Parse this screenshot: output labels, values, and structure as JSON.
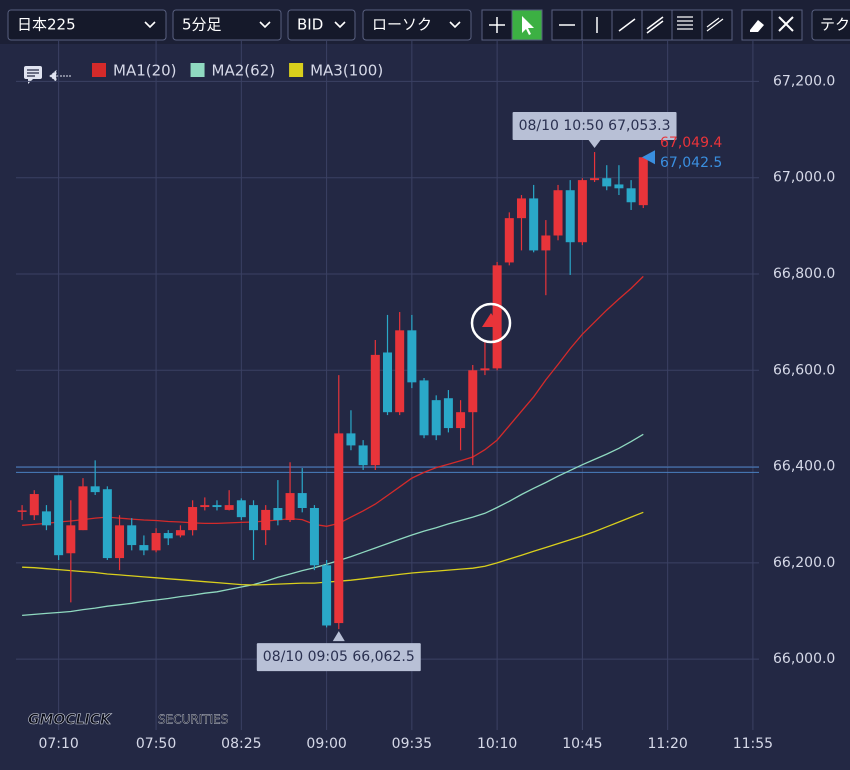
{
  "toolbar": {
    "symbol": "日本225",
    "timeframe": "5分足",
    "price_type": "BID",
    "chart_style": "ローソク",
    "technical": "テク"
  },
  "logo": {
    "brand": "GMOCLICK",
    "suffix": "SECURITIES"
  },
  "chart_data": {
    "type": "candlestick",
    "categories": [
      null,
      null,
      null,
      "07:10",
      null,
      null,
      null,
      null,
      null,
      null,
      null,
      "07:50",
      null,
      null,
      null,
      null,
      null,
      null,
      "08:25",
      null,
      null,
      null,
      null,
      null,
      null,
      "09:00",
      null,
      null,
      null,
      null,
      null,
      null,
      "09:35",
      null,
      null,
      null,
      null,
      null,
      null,
      "10:10",
      null,
      null,
      null,
      null,
      null,
      null,
      "10:45",
      null,
      null,
      null,
      null,
      null,
      null,
      "11:20",
      null,
      null,
      null,
      null,
      null,
      null,
      "11:55"
    ],
    "open": [
      66307,
      66299,
      66307,
      66382,
      66220,
      66268,
      66359,
      66353,
      66210,
      66278,
      66237,
      66226,
      66262,
      66257,
      66268,
      66316,
      66320,
      66310,
      66330,
      66320,
      66268,
      66314,
      66289,
      66345,
      66314,
      66195,
      66075,
      66469,
      66444,
      66403,
      66637,
      66513,
      66683,
      66579,
      66538,
      66542,
      66480,
      66513,
      66600,
      66604,
      66824,
      66916,
      66957,
      66849,
      66880,
      66974,
      66866,
      66995,
      66999,
      66986,
      66978,
      66943,
      null,
      null,
      null,
      null,
      null,
      null,
      null,
      null,
      null
    ],
    "high": [
      66320,
      66351,
      66320,
      66382,
      66330,
      66376,
      66413,
      66359,
      66299,
      66293,
      66257,
      66272,
      66268,
      66278,
      66330,
      66336,
      66330,
      66351,
      66334,
      66330,
      66320,
      66372,
      66409,
      66397,
      66320,
      66206,
      66590,
      66517,
      66455,
      66663,
      66715,
      66721,
      66715,
      66584,
      66548,
      66559,
      66538,
      66611,
      66663,
      66825,
      66928,
      66964,
      66985,
      66912,
      66985,
      66995,
      66999,
      67053.3,
      67026,
      67026,
      66995,
      67042.5,
      null,
      null,
      null,
      null,
      null,
      null,
      null,
      null,
      null
    ],
    "low": [
      66289,
      66289,
      66268,
      66206,
      66118,
      66268,
      66341,
      66206,
      66185,
      66226,
      66216,
      66222,
      66237,
      66253,
      66257,
      66309,
      66309,
      66309,
      66289,
      66206,
      66237,
      66278,
      66285,
      66305,
      66185,
      66066,
      66062.5,
      66434,
      66393,
      66393,
      66507,
      66507,
      66563,
      66459,
      66455,
      66471,
      66434,
      66403,
      66590,
      66600,
      66818,
      66849,
      66845,
      66756,
      66870,
      66798,
      66860,
      66991,
      66974,
      66964,
      66933,
      66937,
      null,
      null,
      null,
      null,
      null,
      null,
      null,
      null,
      null
    ],
    "close": [
      66309,
      66343,
      66278,
      66216,
      66278,
      66359,
      66347,
      66210,
      66278,
      66237,
      66226,
      66262,
      66251,
      66268,
      66316,
      66320,
      66316,
      66320,
      66295,
      66268,
      66310,
      66289,
      66345,
      66314,
      66195,
      66070,
      66469,
      66444,
      66403,
      66632,
      66513,
      66683,
      66575,
      66465,
      66465,
      66480,
      66513,
      66600,
      66604,
      66818,
      66916,
      66957,
      66849,
      66880,
      66974,
      66866,
      66995,
      66999,
      66982,
      66978,
      66949,
      67042.5,
      null,
      null,
      null,
      null,
      null,
      null,
      null,
      null,
      null
    ],
    "up_color": "#e8343a",
    "down_color": "#2aa8c8",
    "series": [
      {
        "name": "MA1(20)",
        "color": "#d42a2a",
        "values": [
          66278,
          66280,
          66282,
          66285,
          66287,
          66290,
          66293,
          66295,
          66293,
          66291,
          66289,
          66288,
          66286,
          66285,
          66283,
          66282,
          66282,
          66283,
          66284,
          66285,
          66287,
          66289,
          66292,
          66290,
          66280,
          66276,
          66282,
          66295,
          66308,
          66322,
          66340,
          66358,
          66376,
          66388,
          66398,
          66405,
          66412,
          66420,
          66435,
          66455,
          66485,
          66515,
          66545,
          66580,
          66612,
          66645,
          66675,
          66700,
          66725,
          66748,
          66770,
          66795,
          null,
          null,
          null,
          null,
          null,
          null,
          null,
          null,
          null
        ]
      },
      {
        "name": "MA2(62)",
        "color": "#8fd9c0",
        "values": [
          66091,
          66093,
          66095,
          66097,
          66099,
          66103,
          66106,
          66110,
          66113,
          66116,
          66120,
          66123,
          66126,
          66130,
          66133,
          66137,
          66140,
          66145,
          66150,
          66155,
          66162,
          66170,
          66177,
          66184,
          66190,
          66197,
          66205,
          66213,
          66222,
          66231,
          66240,
          66249,
          66258,
          66266,
          66273,
          66281,
          66288,
          66295,
          66303,
          66315,
          66328,
          66342,
          66355,
          66367,
          66380,
          66392,
          66404,
          66415,
          66426,
          66438,
          66452,
          66467,
          null,
          null,
          null,
          null,
          null,
          null,
          null,
          null,
          null
        ]
      },
      {
        "name": "MA3(100)",
        "color": "#d9cf1c",
        "values": [
          66191,
          66190,
          66188,
          66186,
          66184,
          66182,
          66180,
          66177,
          66175,
          66173,
          66171,
          66169,
          66167,
          66165,
          66163,
          66161,
          66159,
          66157,
          66155,
          66154,
          66155,
          66156,
          66157,
          66158,
          66158,
          66160,
          66162,
          66164,
          66167,
          66170,
          66173,
          66176,
          66179,
          66181,
          66183,
          66185,
          66187,
          66189,
          66193,
          66200,
          66208,
          66216,
          66224,
          66232,
          66240,
          66248,
          66256,
          66265,
          66275,
          66285,
          66295,
          66305,
          null,
          null,
          null,
          null,
          null,
          null,
          null,
          null,
          null
        ]
      }
    ],
    "ylim": [
      65936,
      67286
    ],
    "yticks": [
      {
        "value": 66000,
        "label": "66,000.0"
      },
      {
        "value": 66200,
        "label": "66,200.0"
      },
      {
        "value": 66400,
        "label": "66,400.0"
      },
      {
        "value": 66600,
        "label": "66,600.0"
      },
      {
        "value": 66800,
        "label": "66,800.0"
      },
      {
        "value": 67000,
        "label": "67,000.0"
      },
      {
        "value": 67200,
        "label": "67,200.0"
      }
    ],
    "grid": true,
    "annotations": [
      {
        "label": "08/10 10:50 67,053.3"
      },
      {
        "label": "08/10 09:05 66,062.5"
      }
    ],
    "price_markers": [
      {
        "value": 67049.4,
        "label": "67,049.4",
        "color": "#e8343a"
      },
      {
        "value": 67042.5,
        "label": "67,042.5",
        "color": "#3a8fe0"
      }
    ],
    "hlines": [
      {
        "value": 66399,
        "color": "#4a7fc0"
      },
      {
        "value": 66388,
        "color": "#4a7fc0"
      }
    ]
  }
}
